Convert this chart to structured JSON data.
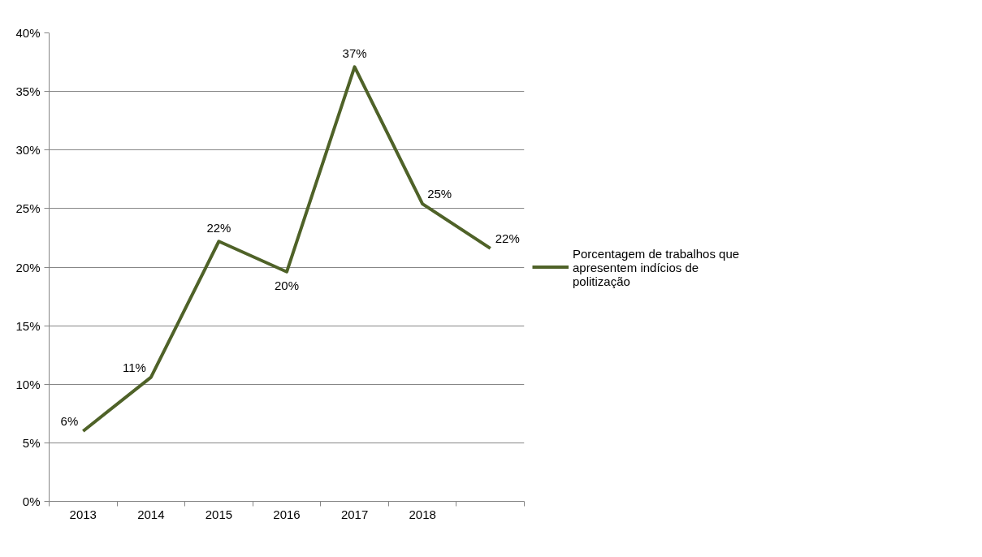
{
  "chart_data": {
    "type": "line",
    "categories": [
      "2013",
      "2014",
      "2015",
      "2016",
      "2017",
      "2018",
      null
    ],
    "series": [
      {
        "name": "Porcentagem de trabalhos que apresentem indícios de politização",
        "color": "#4f6228",
        "values": [
          6,
          10.6,
          22.2,
          19.6,
          37.1,
          25.4,
          21.6
        ],
        "value_labels": [
          "6%",
          "11%",
          "22%",
          "20%",
          "37%",
          "25%",
          "22%"
        ]
      }
    ],
    "ylim": [
      0,
      40
    ],
    "yticks": [
      {
        "value": 0,
        "label": "0%"
      },
      {
        "value": 5,
        "label": "5%"
      },
      {
        "value": 10,
        "label": "10%"
      },
      {
        "value": 15,
        "label": "15%"
      },
      {
        "value": 20,
        "label": "20%"
      },
      {
        "value": 25,
        "label": "25%"
      },
      {
        "value": 30,
        "label": "30%"
      },
      {
        "value": 35,
        "label": "35%"
      },
      {
        "value": 40,
        "label": "40%"
      }
    ],
    "grid": "y",
    "legend": "right",
    "marker": "none",
    "line_style": "solid"
  }
}
